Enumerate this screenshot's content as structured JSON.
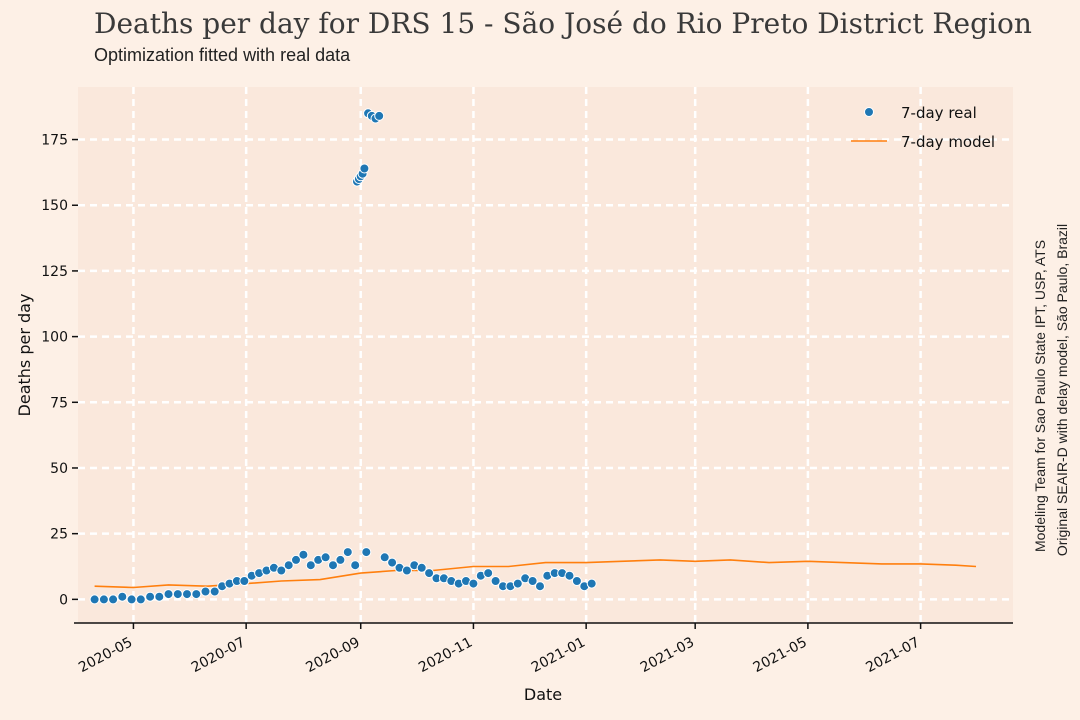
{
  "header": {
    "title": "Deaths per day for DRS 15 - São José do Rio Preto District Region",
    "subtitle": "Optimization fitted with real data"
  },
  "side_note": {
    "line1": "Modeling Team for Sao Paulo State IPT, USP, ATS",
    "line2": "Original SEAIR-D with delay model, São Paulo, Brazil"
  },
  "colors": {
    "background": "#fdf0e6",
    "plot_background": "#fae8dc",
    "grid": "#ffffff",
    "real": "#1f77b4",
    "model": "#ff7f0e"
  },
  "chart_data": {
    "type": "scatter",
    "title": "Deaths per day for DRS 15 - São José do Rio Preto District Region",
    "subtitle": "Optimization fitted with real data",
    "xlabel": "Date",
    "ylabel": "Deaths per day",
    "x_ticks": [
      "2020-05",
      "2020-07",
      "2020-09",
      "2020-11",
      "2021-01",
      "2021-03",
      "2021-05",
      "2021-07"
    ],
    "y_ticks": [
      0,
      25,
      50,
      75,
      100,
      125,
      150,
      175
    ],
    "xlim": [
      "2020-04-01",
      "2021-08-20"
    ],
    "ylim": [
      -9,
      195
    ],
    "grid": true,
    "legend_position": "top-right",
    "series": [
      {
        "name": "7-day real",
        "kind": "scatter",
        "x": [
          "2020-04-10",
          "2020-04-15",
          "2020-04-20",
          "2020-04-25",
          "2020-04-30",
          "2020-05-05",
          "2020-05-10",
          "2020-05-15",
          "2020-05-20",
          "2020-05-25",
          "2020-05-30",
          "2020-06-04",
          "2020-06-09",
          "2020-06-14",
          "2020-06-18",
          "2020-06-22",
          "2020-06-26",
          "2020-06-30",
          "2020-07-04",
          "2020-07-08",
          "2020-07-12",
          "2020-07-16",
          "2020-07-20",
          "2020-07-24",
          "2020-07-28",
          "2020-08-01",
          "2020-08-05",
          "2020-08-09",
          "2020-08-13",
          "2020-08-17",
          "2020-08-21",
          "2020-08-25",
          "2020-08-29",
          "2020-08-30",
          "2020-08-31",
          "2020-09-01",
          "2020-09-02",
          "2020-09-03",
          "2020-09-04",
          "2020-09-05",
          "2020-09-07",
          "2020-09-09",
          "2020-09-11",
          "2020-09-14",
          "2020-09-18",
          "2020-09-22",
          "2020-09-26",
          "2020-09-30",
          "2020-10-04",
          "2020-10-08",
          "2020-10-12",
          "2020-10-16",
          "2020-10-20",
          "2020-10-24",
          "2020-10-28",
          "2020-11-01",
          "2020-11-05",
          "2020-11-09",
          "2020-11-13",
          "2020-11-17",
          "2020-11-21",
          "2020-11-25",
          "2020-11-29",
          "2020-12-03",
          "2020-12-07",
          "2020-12-11",
          "2020-12-15",
          "2020-12-19",
          "2020-12-23",
          "2020-12-27",
          "2020-12-31",
          "2021-01-04"
        ],
        "y": [
          0,
          0,
          0,
          1,
          0,
          0,
          1,
          1,
          2,
          2,
          2,
          2,
          3,
          3,
          5,
          6,
          7,
          7,
          9,
          10,
          11,
          12,
          11,
          13,
          15,
          17,
          13,
          15,
          16,
          13,
          15,
          18,
          13,
          159,
          160,
          161,
          162,
          164,
          18,
          185,
          184,
          183,
          184,
          16,
          14,
          12,
          11,
          13,
          12,
          10,
          8,
          8,
          7,
          6,
          7,
          6,
          9,
          10,
          7,
          5,
          5,
          6,
          8,
          7,
          5,
          9,
          10,
          10,
          9,
          7,
          5,
          6
        ]
      },
      {
        "name": "7-day model",
        "kind": "line",
        "x": [
          "2020-04-10",
          "2020-05-01",
          "2020-05-20",
          "2020-06-10",
          "2020-07-01",
          "2020-07-20",
          "2020-08-10",
          "2020-09-01",
          "2020-09-20",
          "2020-10-10",
          "2020-11-01",
          "2020-11-20",
          "2020-12-10",
          "2021-01-01",
          "2021-01-20",
          "2021-02-10",
          "2021-03-01",
          "2021-03-20",
          "2021-04-10",
          "2021-05-01",
          "2021-05-20",
          "2021-06-10",
          "2021-07-01",
          "2021-07-20",
          "2021-07-31"
        ],
        "y": [
          5,
          4.5,
          5.5,
          5,
          6,
          7,
          7.5,
          10,
          11,
          11,
          12.5,
          12.5,
          14,
          14,
          14.5,
          15,
          14.5,
          15,
          14,
          14.5,
          14,
          13.5,
          13.5,
          13,
          12.5
        ]
      }
    ]
  }
}
